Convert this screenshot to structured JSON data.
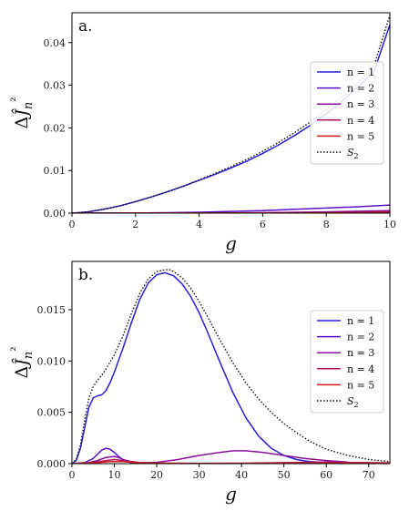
{
  "chart_data": [
    {
      "type": "line",
      "panel_label": "a.",
      "xlabel": "g",
      "ylabel": "ΔĴ_n²",
      "xlim": [
        0,
        10
      ],
      "ylim": [
        0,
        0.047
      ],
      "xticks": [
        0,
        2,
        4,
        6,
        8,
        10
      ],
      "xtick_labels": [
        "0",
        "2",
        "4",
        "6",
        "8",
        "10"
      ],
      "yticks": [
        0,
        0.01,
        0.02,
        0.03,
        0.04
      ],
      "ytick_labels": [
        "0.00",
        "0.01",
        "0.02",
        "0.03",
        "0.04"
      ],
      "legend_position": "center-right",
      "series": [
        {
          "name": "n = 1",
          "color": "#2a1fd6",
          "style": "solid",
          "x": [
            0,
            0.5,
            1,
            1.5,
            2,
            2.5,
            3,
            3.5,
            4,
            4.5,
            5,
            5.5,
            6,
            6.5,
            7,
            7.5,
            8,
            8.5,
            9,
            9.5,
            10
          ],
          "y": [
            0,
            0.0003,
            0.0009,
            0.0017,
            0.0027,
            0.0038,
            0.005,
            0.0063,
            0.0077,
            0.0091,
            0.0106,
            0.0122,
            0.014,
            0.016,
            0.0182,
            0.0206,
            0.0233,
            0.0263,
            0.0296,
            0.0332,
            0.0442
          ]
        },
        {
          "name": "n = 2",
          "color": "#5a12c8",
          "style": "solid",
          "x": [
            0,
            2,
            3,
            4,
            5,
            6,
            7,
            8,
            9,
            10
          ],
          "y": [
            0,
            3e-05,
            0.0001,
            0.0002,
            0.0004,
            0.0006,
            0.0009,
            0.0012,
            0.0015,
            0.0019
          ]
        },
        {
          "name": "n = 3",
          "color": "#8a0f9e",
          "style": "solid",
          "x": [
            0,
            4,
            6,
            8,
            10
          ],
          "y": [
            0,
            3e-05,
            0.0001,
            0.0003,
            0.0006
          ]
        },
        {
          "name": "n = 4",
          "color": "#b0105f",
          "style": "solid",
          "x": [
            0,
            6,
            8,
            10
          ],
          "y": [
            0,
            3e-05,
            0.0001,
            0.0003
          ]
        },
        {
          "name": "n = 5",
          "color": "#d81a1a",
          "style": "solid",
          "x": [
            0,
            7,
            10
          ],
          "y": [
            0,
            2e-05,
            0.0001
          ]
        },
        {
          "name": "S₂",
          "color": "#111111",
          "style": "dotted",
          "x": [
            0,
            0.5,
            1,
            1.5,
            2,
            2.5,
            3,
            3.5,
            4,
            4.5,
            5,
            5.5,
            6,
            6.5,
            7,
            7.5,
            8,
            8.5,
            9,
            9.5,
            10
          ],
          "y": [
            0,
            0.0003,
            0.0009,
            0.0017,
            0.0027,
            0.0038,
            0.005,
            0.0063,
            0.0078,
            0.0093,
            0.0109,
            0.0126,
            0.0145,
            0.0166,
            0.0189,
            0.0214,
            0.0242,
            0.0273,
            0.0307,
            0.0345,
            0.0465
          ]
        }
      ]
    },
    {
      "type": "line",
      "panel_label": "b.",
      "xlabel": "g",
      "ylabel": "ΔĴ_n²",
      "xlim": [
        0,
        75
      ],
      "ylim": [
        0,
        0.0197
      ],
      "xticks": [
        0,
        10,
        20,
        30,
        40,
        50,
        60,
        70
      ],
      "xtick_labels": [
        "0",
        "10",
        "20",
        "30",
        "40",
        "50",
        "60",
        "70"
      ],
      "yticks": [
        0,
        0.005,
        0.01,
        0.015
      ],
      "ytick_labels": [
        "0.000",
        "0.005",
        "0.010",
        "0.015"
      ],
      "legend_position": "center-right",
      "series": [
        {
          "name": "n = 1",
          "color": "#2a1fd6",
          "style": "solid",
          "x": [
            0,
            1,
            2,
            3,
            4,
            5,
            6,
            7,
            8,
            9,
            10,
            12,
            14,
            16,
            18,
            20,
            22,
            24,
            26,
            28,
            30,
            32,
            35,
            38,
            41,
            44,
            47,
            50,
            53,
            56,
            60,
            65,
            70,
            75
          ],
          "y": [
            0,
            0.0003,
            0.0015,
            0.0035,
            0.0055,
            0.0064,
            0.0066,
            0.0067,
            0.0071,
            0.0079,
            0.0089,
            0.0112,
            0.0137,
            0.016,
            0.0176,
            0.0184,
            0.0186,
            0.0183,
            0.0175,
            0.0163,
            0.0147,
            0.0128,
            0.0098,
            0.0069,
            0.0045,
            0.0027,
            0.0015,
            0.0008,
            0.0004,
            0.0002,
            0.0001,
            3e-05,
            1e-05,
            0
          ]
        },
        {
          "name": "n = 2",
          "color": "#5a12c8",
          "style": "solid",
          "x": [
            0,
            3,
            5,
            6,
            7,
            8,
            9,
            10,
            11,
            12,
            13,
            14,
            16,
            18,
            20,
            25,
            30
          ],
          "y": [
            0,
            0.0001,
            0.0005,
            0.0009,
            0.0013,
            0.0015,
            0.0014,
            0.0011,
            0.0007,
            0.0004,
            0.0002,
            0.0001,
            3e-05,
            1e-05,
            0,
            0,
            0
          ]
        },
        {
          "name": "n = 3",
          "color": "#8a0f9e",
          "style": "solid",
          "x": [
            0,
            4,
            6,
            8,
            10,
            11,
            12,
            14,
            16,
            18,
            20,
            25,
            30,
            35,
            38,
            41,
            45,
            50,
            55,
            60,
            65,
            70,
            75
          ],
          "y": [
            0,
            0.0001,
            0.0003,
            0.0006,
            0.0007,
            0.0006,
            0.0004,
            0.0002,
            0.0001,
            0.0001,
            0.00012,
            0.0004,
            0.0008,
            0.0011,
            0.00125,
            0.00125,
            0.0011,
            0.0008,
            0.0005,
            0.0003,
            0.00015,
            7e-05,
            3e-05
          ]
        },
        {
          "name": "n = 4",
          "color": "#b0105f",
          "style": "solid",
          "x": [
            0,
            5,
            8,
            10,
            12,
            14,
            16,
            20,
            30,
            40,
            50,
            60,
            70,
            75
          ],
          "y": [
            0,
            0.0001,
            0.0003,
            0.0004,
            0.0003,
            0.0002,
            0.0001,
            5e-05,
            3e-05,
            5e-05,
            0.0001,
            0.00015,
            0.0001,
            8e-05
          ]
        },
        {
          "name": "n = 5",
          "color": "#d81a1a",
          "style": "solid",
          "x": [
            0,
            6,
            9,
            12,
            15,
            20,
            30,
            40,
            50,
            60,
            70,
            75
          ],
          "y": [
            0,
            0.0001,
            0.0002,
            0.0002,
            0.0001,
            5e-05,
            2e-05,
            2e-05,
            3e-05,
            5e-05,
            6e-05,
            5e-05
          ]
        },
        {
          "name": "S₂",
          "color": "#111111",
          "style": "dotted",
          "x": [
            0,
            1,
            2,
            3,
            4,
            5,
            6,
            7,
            8,
            9,
            10,
            12,
            14,
            16,
            18,
            20,
            22,
            23,
            24,
            26,
            28,
            30,
            32,
            35,
            38,
            41,
            44,
            47,
            50,
            53,
            56,
            60,
            65,
            70,
            75
          ],
          "y": [
            0,
            0.0004,
            0.0018,
            0.0042,
            0.0064,
            0.0075,
            0.0081,
            0.0086,
            0.0092,
            0.0099,
            0.0106,
            0.0124,
            0.0146,
            0.0166,
            0.018,
            0.0187,
            0.0189,
            0.0189,
            0.0187,
            0.0181,
            0.0171,
            0.0158,
            0.0143,
            0.012,
            0.0098,
            0.0079,
            0.0063,
            0.005,
            0.0039,
            0.003,
            0.0022,
            0.0014,
            0.0008,
            0.0004,
            0.0002
          ]
        }
      ]
    }
  ]
}
